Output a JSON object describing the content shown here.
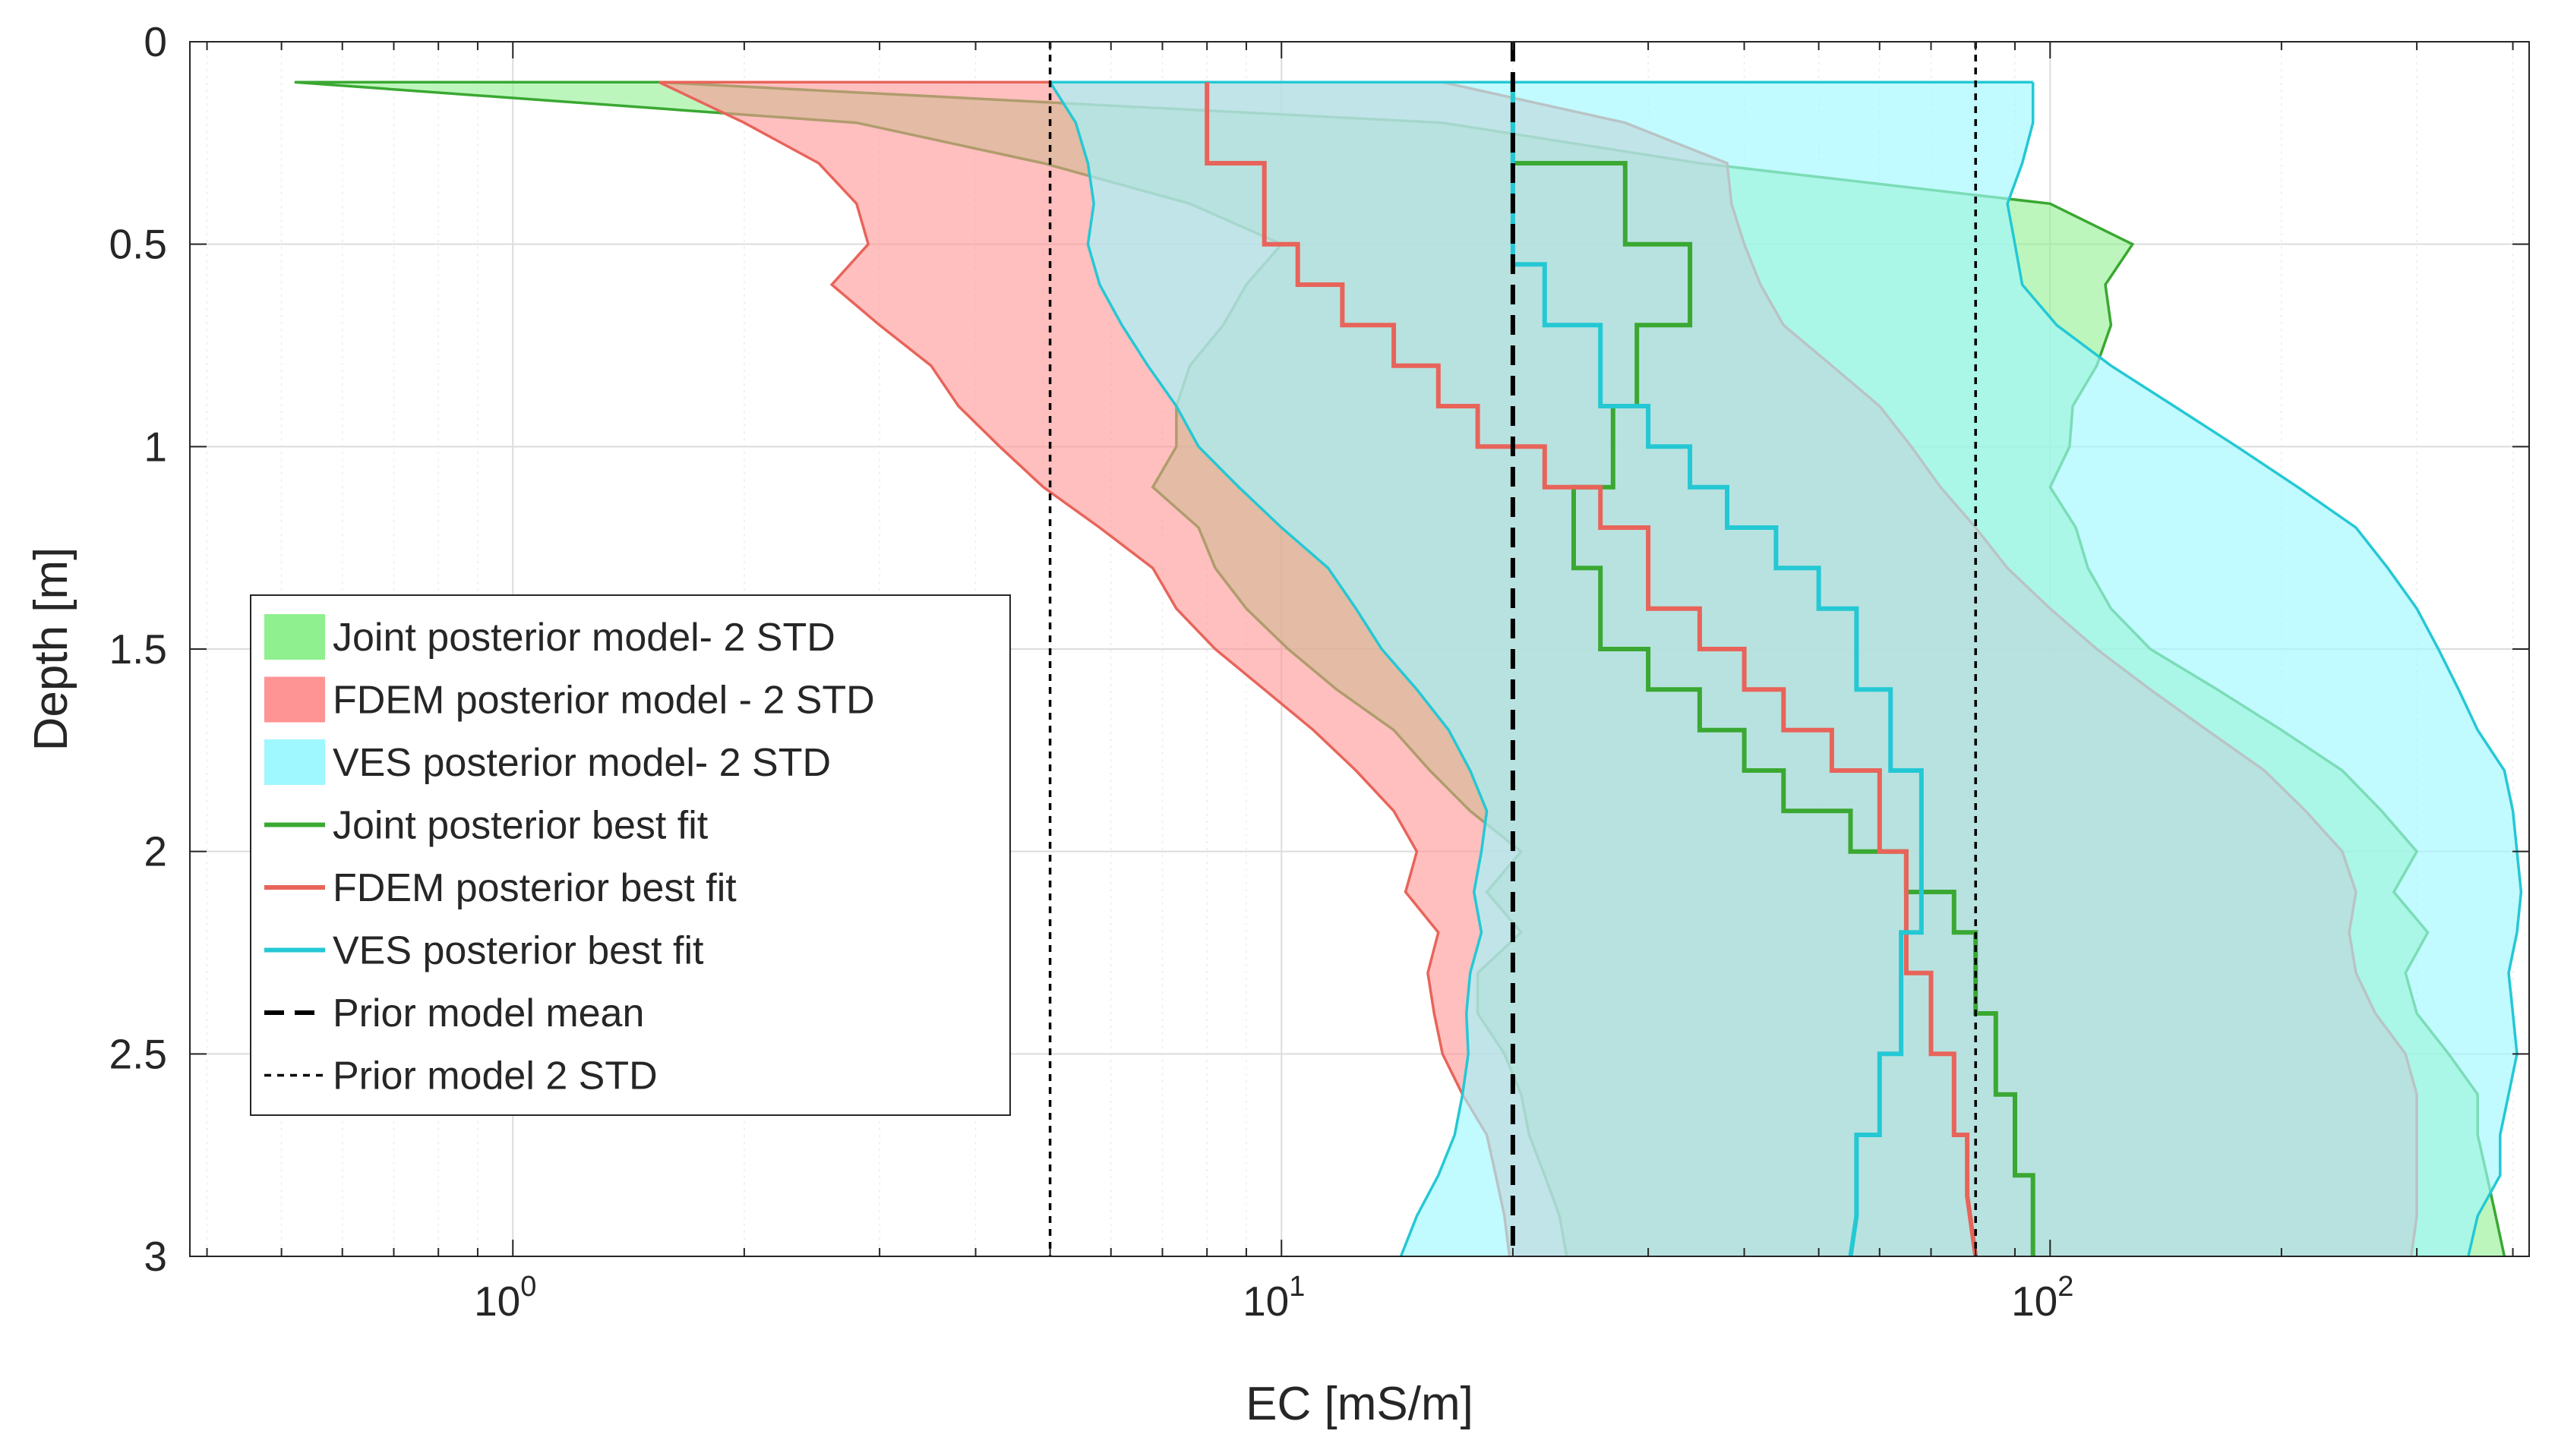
{
  "chart_data": {
    "type": "line",
    "xlabel": "EC [mS/m]",
    "ylabel": "Depth [m]",
    "xscale": "log",
    "xlim": [
      0.38,
      420
    ],
    "ylim": [
      0,
      3
    ],
    "y_reversed": true,
    "grid": true,
    "legend_placement": "center-left",
    "x_tick_labels": [
      {
        "value": 1,
        "base": "10",
        "exp": "0"
      },
      {
        "value": 10,
        "base": "10",
        "exp": "1"
      },
      {
        "value": 100,
        "base": "10",
        "exp": "2"
      }
    ],
    "y_ticks": [
      0,
      0.5,
      1,
      1.5,
      2,
      2.5,
      3
    ],
    "y_tick_labels": [
      "0",
      "0.5",
      "1",
      "1.5",
      "2",
      "2.5",
      "3"
    ],
    "bands": [
      {
        "name": "Joint posterior model- 2 STD",
        "fill": "#8ff08f",
        "opacity": 0.6,
        "stroke": "#3aa832",
        "depth": [
          0.1,
          0.2,
          0.3,
          0.4,
          0.5,
          0.6,
          0.7,
          0.8,
          0.9,
          1.0,
          1.1,
          1.2,
          1.3,
          1.4,
          1.5,
          1.6,
          1.7,
          1.8,
          1.9,
          2.0,
          2.1,
          2.2,
          2.3,
          2.4,
          2.5,
          2.6,
          2.7,
          2.8,
          2.9,
          3.0
        ],
        "lower": [
          0.52,
          2.8,
          4.9,
          7.6,
          10.0,
          9.0,
          8.4,
          7.6,
          7.3,
          7.3,
          6.8,
          7.8,
          8.2,
          9.0,
          10.2,
          11.8,
          14.0,
          15.6,
          17.6,
          20.5,
          18.5,
          20.5,
          18.0,
          18.0,
          19.5,
          20.5,
          21.0,
          22.0,
          23.0,
          23.5
        ],
        "upper": [
          1.55,
          16.2,
          35.0,
          100,
          128,
          118,
          120,
          115,
          107,
          106,
          100,
          108,
          112,
          120,
          135,
          165,
          200,
          240,
          270,
          300,
          280,
          310,
          290,
          300,
          330,
          360,
          360,
          370,
          380,
          390
        ]
      },
      {
        "name": "FDEM posterior model - 2 STD",
        "fill": "#ff9494",
        "opacity": 0.6,
        "stroke": "#e8645a",
        "depth": [
          0.1,
          0.2,
          0.3,
          0.4,
          0.5,
          0.6,
          0.7,
          0.8,
          0.9,
          1.0,
          1.1,
          1.2,
          1.3,
          1.4,
          1.5,
          1.6,
          1.7,
          1.8,
          1.9,
          2.0,
          2.1,
          2.2,
          2.3,
          2.4,
          2.5,
          2.6,
          2.7,
          2.8,
          2.9,
          3.0
        ],
        "lower": [
          1.55,
          2.0,
          2.5,
          2.8,
          2.9,
          2.6,
          3.0,
          3.5,
          3.8,
          4.3,
          4.9,
          5.8,
          6.8,
          7.3,
          8.2,
          9.5,
          11.0,
          12.5,
          14.0,
          15.0,
          14.5,
          16.0,
          15.5,
          15.8,
          16.2,
          17.2,
          18.5,
          19.0,
          19.5,
          19.8
        ],
        "upper": [
          16.2,
          28.0,
          38.0,
          38.5,
          40.0,
          42.0,
          45.0,
          52.0,
          60.0,
          66.0,
          72.0,
          80.0,
          88.0,
          100,
          115,
          135,
          160,
          190,
          215,
          240,
          250,
          245,
          250,
          265,
          290,
          300,
          300,
          300,
          300,
          295
        ]
      },
      {
        "name": "VES posterior model- 2 STD",
        "fill": "#9ff7ff",
        "opacity": 0.65,
        "stroke": "#24c8d4",
        "depth": [
          0.1,
          0.2,
          0.3,
          0.4,
          0.5,
          0.6,
          0.7,
          0.8,
          0.9,
          1.0,
          1.1,
          1.2,
          1.3,
          1.4,
          1.5,
          1.6,
          1.7,
          1.8,
          1.9,
          2.0,
          2.1,
          2.2,
          2.3,
          2.4,
          2.5,
          2.6,
          2.7,
          2.8,
          2.9,
          3.0
        ],
        "lower": [
          5.0,
          5.4,
          5.6,
          5.7,
          5.6,
          5.8,
          6.2,
          6.7,
          7.3,
          7.8,
          8.8,
          10.0,
          11.5,
          12.5,
          13.5,
          15.0,
          16.5,
          17.6,
          18.5,
          18.2,
          17.8,
          18.2,
          17.6,
          17.4,
          17.5,
          17.2,
          16.8,
          16.0,
          15.0,
          14.3
        ],
        "upper": [
          95,
          95,
          92,
          88,
          90,
          92,
          102,
          120,
          145,
          175,
          210,
          250,
          275,
          300,
          320,
          340,
          360,
          390,
          400,
          405,
          410,
          405,
          395,
          400,
          405,
          395,
          385,
          385,
          360,
          350
        ]
      }
    ],
    "series": [
      {
        "name": "Joint posterior best fit",
        "color": "#3aa832",
        "x": [
          20,
          20,
          28,
          28,
          34,
          34,
          29,
          29,
          27,
          27,
          24,
          24,
          26,
          26,
          30,
          30,
          35,
          35,
          40,
          40,
          45,
          45,
          55,
          55,
          65,
          65,
          75,
          75,
          80,
          80,
          85,
          85,
          90,
          90,
          95,
          95,
          95
        ],
        "depth": [
          0.1,
          0.3,
          0.3,
          0.5,
          0.5,
          0.7,
          0.7,
          0.9,
          0.9,
          1.1,
          1.1,
          1.3,
          1.3,
          1.5,
          1.5,
          1.6,
          1.6,
          1.7,
          1.7,
          1.8,
          1.8,
          1.9,
          1.9,
          2.0,
          2.0,
          2.1,
          2.1,
          2.2,
          2.2,
          2.4,
          2.4,
          2.6,
          2.6,
          2.8,
          2.8,
          2.9,
          3.0
        ]
      },
      {
        "name": "FDEM posterior best fit",
        "color": "#e8645a",
        "x": [
          8,
          8,
          9.5,
          9.5,
          10.5,
          10.5,
          12,
          12,
          14,
          14,
          16,
          16,
          18,
          18,
          22,
          22,
          26,
          26,
          30,
          30,
          35,
          35,
          40,
          40,
          45,
          45,
          52,
          52,
          60,
          60,
          65,
          65,
          70,
          70,
          75,
          75,
          78,
          78,
          80
        ],
        "depth": [
          0.1,
          0.3,
          0.3,
          0.5,
          0.5,
          0.6,
          0.6,
          0.7,
          0.7,
          0.8,
          0.8,
          0.9,
          0.9,
          1.0,
          1.0,
          1.1,
          1.1,
          1.2,
          1.2,
          1.4,
          1.4,
          1.5,
          1.5,
          1.6,
          1.6,
          1.7,
          1.7,
          1.8,
          1.8,
          2.0,
          2.0,
          2.3,
          2.3,
          2.5,
          2.5,
          2.7,
          2.7,
          2.85,
          3.0
        ]
      },
      {
        "name": "VES posterior best fit",
        "color": "#24c8d4",
        "x": [
          20,
          20,
          22,
          22,
          26,
          26,
          30,
          30,
          34,
          34,
          38,
          38,
          44,
          44,
          50,
          50,
          56,
          56,
          62,
          62,
          68,
          68,
          64,
          64,
          60,
          60,
          56,
          56,
          55
        ],
        "depth": [
          0.1,
          0.55,
          0.55,
          0.7,
          0.7,
          0.9,
          0.9,
          1.0,
          1.0,
          1.1,
          1.1,
          1.2,
          1.2,
          1.3,
          1.3,
          1.4,
          1.4,
          1.6,
          1.6,
          1.8,
          1.8,
          2.2,
          2.2,
          2.5,
          2.5,
          2.7,
          2.7,
          2.9,
          3.0
        ]
      },
      {
        "name": "Prior model mean",
        "color": "#000000",
        "dash": "thick",
        "x": [
          20,
          20
        ],
        "depth": [
          0,
          3
        ]
      },
      {
        "name": "Prior model 2 STD",
        "color": "#000000",
        "dash": "thin",
        "x": [
          5,
          5
        ],
        "depth": [
          0,
          3
        ]
      },
      {
        "name": "Prior model 2 STD (upper)",
        "color": "#000000",
        "dash": "thin",
        "legend": false,
        "x": [
          80,
          80
        ],
        "depth": [
          0,
          3
        ]
      }
    ]
  },
  "legend": {
    "items": [
      {
        "kind": "patch",
        "color": "#8ff08f",
        "label": "Joint posterior model- 2 STD"
      },
      {
        "kind": "patch",
        "color": "#ff9494",
        "label": "FDEM posterior model - 2 STD"
      },
      {
        "kind": "patch",
        "color": "#9ff7ff",
        "label": "VES posterior model- 2 STD"
      },
      {
        "kind": "line",
        "color": "#3aa832",
        "label": "Joint posterior best fit"
      },
      {
        "kind": "line",
        "color": "#e8645a",
        "label": "FDEM posterior best fit"
      },
      {
        "kind": "line",
        "color": "#24c8d4",
        "label": "VES posterior best fit"
      },
      {
        "kind": "dash-thick",
        "color": "#000000",
        "label": "Prior model mean"
      },
      {
        "kind": "dash-thin",
        "color": "#000000",
        "label": "Prior model 2 STD"
      }
    ]
  }
}
